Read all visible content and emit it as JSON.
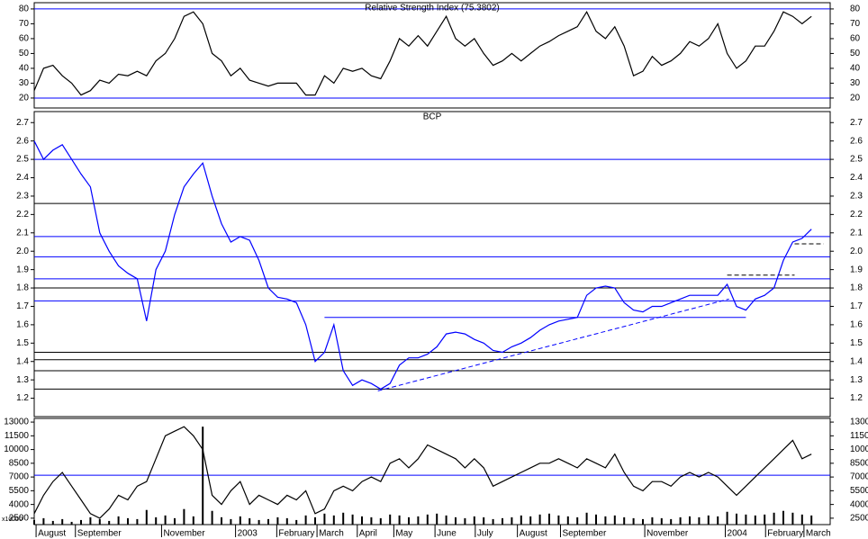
{
  "chart_data": [
    {
      "type": "line",
      "title": "Relative Strength Index (75.3802)",
      "color": "#000000",
      "xlim": [
        0,
        85
      ],
      "ylim": [
        13.3,
        84.2
      ],
      "yticks": [
        20,
        30,
        40,
        50,
        60,
        70,
        80
      ],
      "levels": [
        {
          "value": 80,
          "color": "#0000ff"
        },
        {
          "value": 20,
          "color": "#0000ff"
        }
      ],
      "values": [
        25,
        40,
        42,
        35,
        30,
        22,
        25,
        32,
        30,
        36,
        35,
        38,
        35,
        45,
        50,
        60,
        75,
        78,
        70,
        50,
        45,
        35,
        40,
        32,
        30,
        28,
        30,
        30,
        30,
        22,
        22,
        35,
        30,
        40,
        38,
        40,
        35,
        33,
        45,
        60,
        55,
        62,
        55,
        65,
        75,
        60,
        55,
        60,
        50,
        42,
        45,
        50,
        45,
        50,
        55,
        58,
        62,
        65,
        68,
        78,
        65,
        60,
        68,
        55,
        35,
        38,
        48,
        42,
        45,
        50,
        58,
        55,
        60,
        70,
        50,
        40,
        45,
        55,
        55,
        65,
        78,
        75,
        70,
        75
      ]
    },
    {
      "type": "line",
      "title": "BCP",
      "color": "#0000ff",
      "xlim": [
        0,
        85
      ],
      "ylim": [
        1.1,
        2.76
      ],
      "yticks": [
        1.2,
        1.3,
        1.4,
        1.5,
        1.6,
        1.7,
        1.8,
        1.9,
        {
          "value": 2,
          "label": "2.0"
        },
        2.1,
        2.2,
        2.3,
        2.4,
        2.5,
        2.6,
        2.7
      ],
      "levels": [
        {
          "value": 2.5,
          "color": "#0000ff"
        },
        {
          "value": 2.08,
          "color": "#0000ff"
        },
        {
          "value": 1.97,
          "color": "#0000ff"
        },
        {
          "value": 1.85,
          "color": "#0000ff"
        },
        {
          "value": 1.73,
          "color": "#0000ff"
        },
        {
          "value": 2.26,
          "color": "#000000"
        },
        {
          "value": 1.8,
          "color": "#000000"
        },
        {
          "value": 1.45,
          "color": "#000000"
        },
        {
          "value": 1.41,
          "color": "#000000"
        },
        {
          "value": 1.35,
          "color": "#000000"
        },
        {
          "value": 1.25,
          "color": "#000000"
        }
      ],
      "trendlines": [
        {
          "x": [
            36.7,
            74.2
          ],
          "y": [
            1.24,
            1.74
          ],
          "dash": true,
          "color": "#0000ff"
        },
        {
          "x": [
            31,
            76
          ],
          "y": [
            1.64,
            1.64
          ],
          "dash": false,
          "color": "#0000ff"
        },
        {
          "x": [
            74,
            81.2
          ],
          "y": [
            1.87,
            1.87
          ],
          "dash": true,
          "color": "#000000"
        },
        {
          "x": [
            81.2,
            84.3
          ],
          "y": [
            2.04,
            2.04
          ],
          "dash": true,
          "color": "#000000"
        }
      ],
      "values": [
        2.6,
        2.5,
        2.55,
        2.58,
        2.5,
        2.42,
        2.35,
        2.1,
        2.0,
        1.92,
        1.88,
        1.85,
        1.62,
        1.9,
        2.0,
        2.2,
        2.35,
        2.42,
        2.48,
        2.3,
        2.15,
        2.05,
        2.08,
        2.06,
        1.95,
        1.8,
        1.75,
        1.74,
        1.72,
        1.6,
        1.4,
        1.45,
        1.6,
        1.35,
        1.27,
        1.3,
        1.28,
        1.25,
        1.28,
        1.38,
        1.42,
        1.42,
        1.44,
        1.48,
        1.55,
        1.56,
        1.55,
        1.52,
        1.5,
        1.46,
        1.45,
        1.48,
        1.5,
        1.53,
        1.57,
        1.6,
        1.62,
        1.63,
        1.64,
        1.76,
        1.8,
        1.81,
        1.8,
        1.72,
        1.68,
        1.67,
        1.7,
        1.7,
        1.72,
        1.74,
        1.76,
        1.76,
        1.76,
        1.76,
        1.82,
        1.7,
        1.68,
        1.74,
        1.76,
        1.8,
        1.95,
        2.05,
        2.07,
        2.12
      ]
    },
    {
      "type": "line",
      "unit_label": "x10000",
      "color": "#000000",
      "xlim": [
        0,
        85
      ],
      "ylim": [
        1800,
        13400
      ],
      "yticks": [
        2500,
        4000,
        5500,
        7000,
        8500,
        10000,
        11500,
        13000
      ],
      "xticks": [
        {
          "value": 0.2,
          "label": "August"
        },
        {
          "value": 4.4,
          "label": "September"
        },
        {
          "value": 13.6,
          "label": "November"
        },
        {
          "value": 21.5,
          "label": "2003"
        },
        {
          "value": 25.9,
          "label": "February"
        },
        {
          "value": 30.2,
          "label": "March"
        },
        {
          "value": 34.5,
          "label": "April"
        },
        {
          "value": 38.4,
          "label": "May"
        },
        {
          "value": 42.8,
          "label": "June"
        },
        {
          "value": 47.1,
          "label": "July"
        },
        {
          "value": 51.6,
          "label": "August"
        },
        {
          "value": 56.2,
          "label": "September"
        },
        {
          "value": 65.2,
          "label": "November"
        },
        {
          "value": 73.8,
          "label": "2004"
        },
        {
          "value": 78.1,
          "label": "February"
        },
        {
          "value": 82.2,
          "label": "March"
        }
      ],
      "levels": [
        {
          "value": 7200,
          "color": "#0000ff"
        }
      ],
      "values": [
        3000,
        5000,
        6500,
        7500,
        6000,
        4500,
        3000,
        2500,
        3500,
        5000,
        4500,
        6000,
        6500,
        9000,
        11500,
        12000,
        12500,
        11500,
        10000,
        5000,
        4000,
        5500,
        6500,
        4000,
        5000,
        4500,
        4000,
        5000,
        4500,
        5500,
        3000,
        3500,
        5500,
        6000,
        5500,
        6500,
        7000,
        6500,
        8500,
        9000,
        8000,
        9000,
        10500,
        10000,
        9500,
        9000,
        8000,
        9000,
        8000,
        6000,
        6500,
        7000,
        7500,
        8000,
        8500,
        8500,
        9000,
        8500,
        8000,
        9000,
        8500,
        8000,
        9500,
        7500,
        6000,
        5500,
        6500,
        6500,
        6000,
        7000,
        7500,
        7000,
        7500,
        7000,
        6000,
        5000,
        6000,
        7000,
        8000,
        9000,
        10000,
        11000,
        9000,
        9500
      ],
      "volume_color": "#000000",
      "volume": [
        2300,
        2500,
        2200,
        2400,
        2100,
        2300,
        2600,
        2400,
        2200,
        2700,
        2500,
        2400,
        3400,
        2600,
        2800,
        2500,
        3500,
        2700,
        12500,
        3300,
        2600,
        2400,
        2700,
        2500,
        2300,
        2400,
        2600,
        2500,
        2300,
        2800,
        2600,
        3000,
        2800,
        3100,
        2900,
        2700,
        2600,
        2500,
        2900,
        2800,
        2600,
        2700,
        2900,
        3000,
        2800,
        2600,
        2500,
        2700,
        2600,
        2400,
        2500,
        2600,
        2800,
        2700,
        2900,
        3000,
        2800,
        2700,
        2600,
        3100,
        2900,
        2700,
        2800,
        2600,
        2500,
        2400,
        2600,
        2500,
        2400,
        2600,
        2700,
        2600,
        2800,
        2700,
        3200,
        3000,
        2900,
        2800,
        2900,
        3100,
        3300,
        3100,
        2900,
        2800
      ]
    }
  ]
}
